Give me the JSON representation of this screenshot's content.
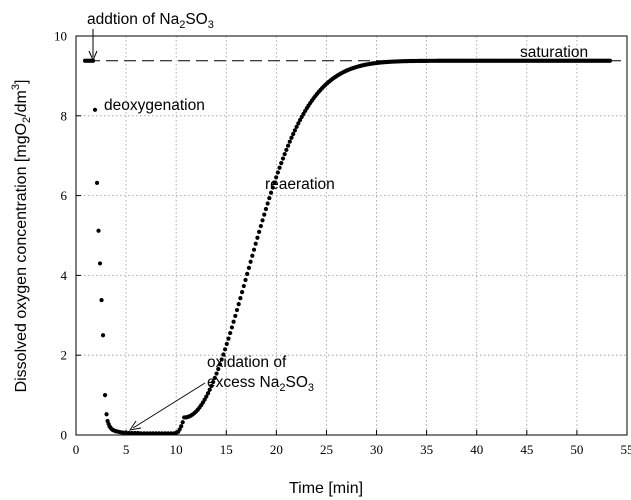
{
  "chart_data": {
    "type": "scatter",
    "xlabel": "Time [min]",
    "ylabel": {
      "text": "Dissolved oxygen concentration [mgO",
      "sub": "2",
      "mid": "/dm",
      "sup": "3",
      "end": "]"
    },
    "xlim": [
      0,
      55
    ],
    "ylim": [
      0,
      10
    ],
    "x_ticks": [
      0,
      5,
      10,
      15,
      20,
      25,
      30,
      35,
      40,
      45,
      50,
      55
    ],
    "y_ticks": [
      0,
      2,
      4,
      6,
      8,
      10
    ],
    "grid": true,
    "saturation_level": 9.38,
    "annotations": {
      "addition": {
        "text": "addtion of Na",
        "sub1": "2",
        "mid": "SO",
        "sub2": "3"
      },
      "saturation": "saturation",
      "deoxygenation": "deoxygenation",
      "reaeration": "reaeration",
      "oxidation_line1": "oxidation of",
      "oxidation_line2": {
        "text": "excess Na",
        "sub1": "2",
        "mid": "SO",
        "sub2": "3"
      }
    },
    "series": [
      {
        "points": [
          [
            0.9,
            9.38
          ],
          [
            1.1,
            9.38
          ],
          [
            1.3,
            9.38
          ],
          [
            1.5,
            9.38
          ],
          [
            1.7,
            9.38
          ],
          [
            1.9,
            8.15
          ],
          [
            2.1,
            6.32
          ],
          [
            2.25,
            5.12
          ],
          [
            2.4,
            4.3
          ],
          [
            2.55,
            3.38
          ],
          [
            2.7,
            2.5
          ],
          [
            2.9,
            1.0
          ],
          [
            3.05,
            0.52
          ],
          [
            3.15,
            0.35
          ],
          [
            3.25,
            0.28
          ],
          [
            3.35,
            0.22
          ],
          [
            3.45,
            0.18
          ],
          [
            3.55,
            0.15
          ],
          [
            3.65,
            0.13
          ],
          [
            3.75,
            0.12
          ],
          [
            3.9,
            0.1
          ],
          [
            4.05,
            0.09
          ],
          [
            4.25,
            0.08
          ],
          [
            4.45,
            0.07
          ],
          [
            4.7,
            0.06
          ],
          [
            5.0,
            0.06
          ],
          [
            5.3,
            0.05
          ],
          [
            5.6,
            0.05
          ],
          [
            5.9,
            0.05
          ],
          [
            6.2,
            0.05
          ],
          [
            6.5,
            0.04
          ],
          [
            6.8,
            0.04
          ],
          [
            7.1,
            0.04
          ],
          [
            7.4,
            0.04
          ],
          [
            7.7,
            0.04
          ],
          [
            8.0,
            0.04
          ],
          [
            8.3,
            0.04
          ],
          [
            8.6,
            0.04
          ],
          [
            8.9,
            0.04
          ],
          [
            9.2,
            0.04
          ],
          [
            9.5,
            0.04
          ],
          [
            9.8,
            0.04
          ],
          [
            10.0,
            0.05
          ],
          [
            10.2,
            0.08
          ],
          [
            10.35,
            0.14
          ],
          [
            10.5,
            0.22
          ],
          [
            10.65,
            0.32
          ],
          [
            10.8,
            0.44
          ]
        ],
        "reaeration": {
          "x_start": 10.8,
          "x_end": 53.4,
          "step": 0.17,
          "y_start": 0.44,
          "sigmoid": {
            "y_max": 9.38,
            "lag_offset": 0.0,
            "k": 0.115,
            "shape": 2.05
          }
        }
      }
    ]
  }
}
